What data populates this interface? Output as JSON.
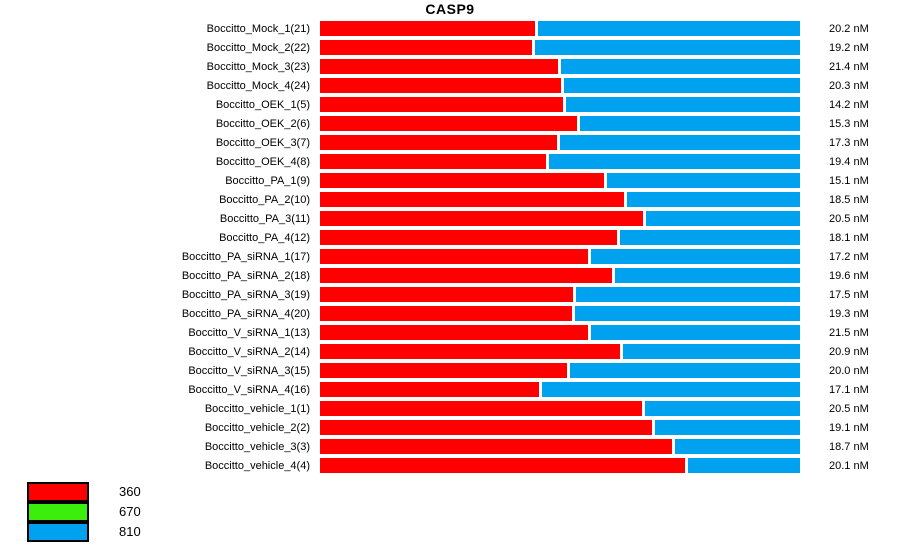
{
  "title": "CASP9",
  "legend": {
    "items": [
      {
        "label": "360",
        "color": "#ff0000"
      },
      {
        "label": "670",
        "color": "#3cee0c"
      },
      {
        "label": "810",
        "color": "#00a2f0"
      }
    ]
  },
  "chart_data": {
    "type": "bar",
    "subtype": "horizontal-stacked",
    "title": "CASP9",
    "legend_position": "bottom-left",
    "grid": false,
    "series_names": [
      "360",
      "670",
      "810"
    ],
    "series_colors": {
      "360": "#ff0000",
      "670": "#3cee0c",
      "810": "#00a2f0"
    },
    "note": "Each row is a 100%-width stacked bar of 360 (red) and 810 (blue) channel fractions; right column shows measured concentration.",
    "rows": [
      {
        "label": "Boccitto_Mock_1(21)",
        "red_360_pct": 44.8,
        "blue_810_pct": 55.2,
        "value": "20.2 nM"
      },
      {
        "label": "Boccitto_Mock_2(22)",
        "red_360_pct": 44.2,
        "blue_810_pct": 55.8,
        "value": "19.2 nM"
      },
      {
        "label": "Boccitto_Mock_3(23)",
        "red_360_pct": 49.6,
        "blue_810_pct": 50.4,
        "value": "21.4 nM"
      },
      {
        "label": "Boccitto_Mock_4(24)",
        "red_360_pct": 50.2,
        "blue_810_pct": 49.8,
        "value": "20.3 nM"
      },
      {
        "label": "Boccitto_OEK_1(5)",
        "red_360_pct": 50.6,
        "blue_810_pct": 49.4,
        "value": "14.2 nM"
      },
      {
        "label": "Boccitto_OEK_2(6)",
        "red_360_pct": 53.5,
        "blue_810_pct": 46.5,
        "value": "15.3 nM"
      },
      {
        "label": "Boccitto_OEK_3(7)",
        "red_360_pct": 49.4,
        "blue_810_pct": 50.6,
        "value": "17.3 nM"
      },
      {
        "label": "Boccitto_OEK_4(8)",
        "red_360_pct": 47.1,
        "blue_810_pct": 52.9,
        "value": "19.4 nM"
      },
      {
        "label": "Boccitto_PA_1(9)",
        "red_360_pct": 59.2,
        "blue_810_pct": 40.8,
        "value": "15.1 nM"
      },
      {
        "label": "Boccitto_PA_2(10)",
        "red_360_pct": 63.3,
        "blue_810_pct": 36.7,
        "value": "18.5 nM"
      },
      {
        "label": "Boccitto_PA_3(11)",
        "red_360_pct": 67.3,
        "blue_810_pct": 32.7,
        "value": "20.5 nM"
      },
      {
        "label": "Boccitto_PA_4(12)",
        "red_360_pct": 61.9,
        "blue_810_pct": 38.1,
        "value": "18.1 nM"
      },
      {
        "label": "Boccitto_PA_siRNA_1(17)",
        "red_360_pct": 55.8,
        "blue_810_pct": 44.2,
        "value": "17.2 nM"
      },
      {
        "label": "Boccitto_PA_siRNA_2(18)",
        "red_360_pct": 60.8,
        "blue_810_pct": 39.2,
        "value": "19.6 nM"
      },
      {
        "label": "Boccitto_PA_siRNA_3(19)",
        "red_360_pct": 52.7,
        "blue_810_pct": 47.3,
        "value": "17.5 nM"
      },
      {
        "label": "Boccitto_PA_siRNA_4(20)",
        "red_360_pct": 52.5,
        "blue_810_pct": 47.5,
        "value": "19.3 nM"
      },
      {
        "label": "Boccitto_V_siRNA_1(13)",
        "red_360_pct": 55.8,
        "blue_810_pct": 44.2,
        "value": "21.5 nM"
      },
      {
        "label": "Boccitto_V_siRNA_2(14)",
        "red_360_pct": 62.5,
        "blue_810_pct": 37.5,
        "value": "20.9 nM"
      },
      {
        "label": "Boccitto_V_siRNA_3(15)",
        "red_360_pct": 51.5,
        "blue_810_pct": 48.5,
        "value": "20.0 nM"
      },
      {
        "label": "Boccitto_V_siRNA_4(16)",
        "red_360_pct": 45.6,
        "blue_810_pct": 54.4,
        "value": "17.1 nM"
      },
      {
        "label": "Boccitto_vehicle_1(1)",
        "red_360_pct": 67.1,
        "blue_810_pct": 32.9,
        "value": "20.5 nM"
      },
      {
        "label": "Boccitto_vehicle_2(2)",
        "red_360_pct": 69.2,
        "blue_810_pct": 30.8,
        "value": "19.1 nM"
      },
      {
        "label": "Boccitto_vehicle_3(3)",
        "red_360_pct": 73.3,
        "blue_810_pct": 26.7,
        "value": "18.7 nM"
      },
      {
        "label": "Boccitto_vehicle_4(4)",
        "red_360_pct": 76.0,
        "blue_810_pct": 24.0,
        "value": "20.1 nM"
      }
    ]
  }
}
